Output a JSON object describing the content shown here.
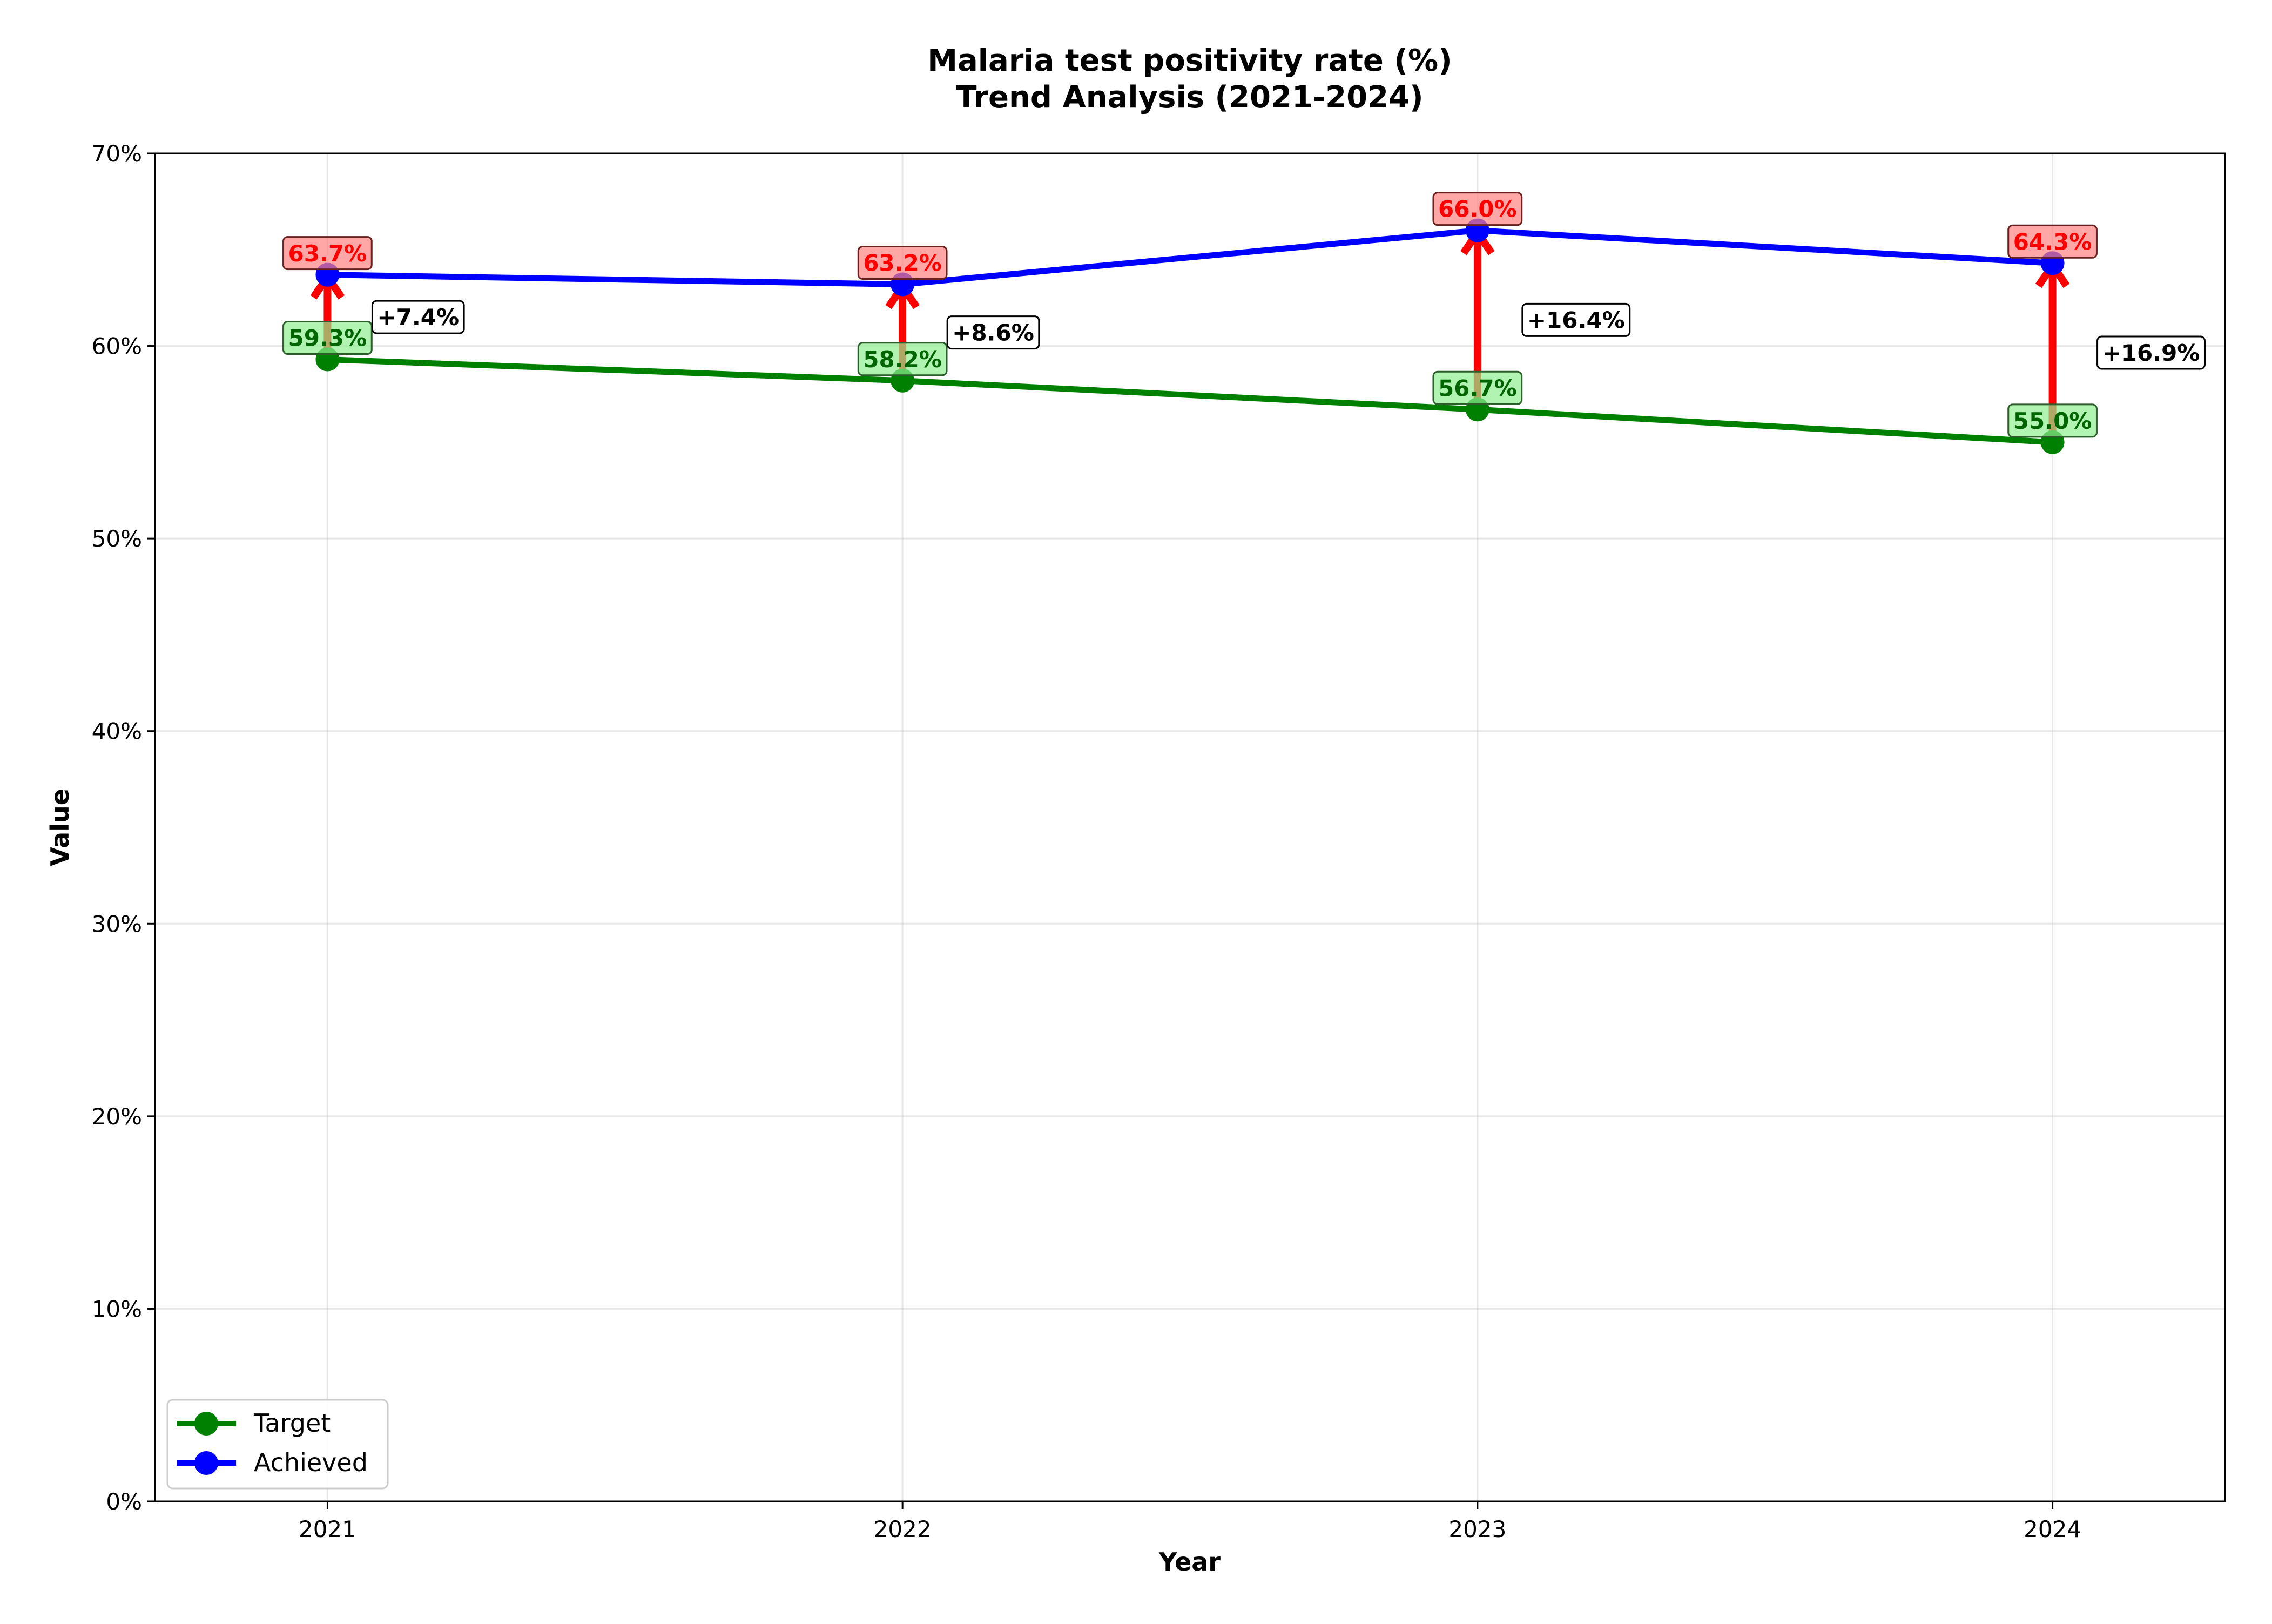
{
  "chart_data": {
    "type": "line",
    "title": "Malaria test positivity rate (%)",
    "subtitle": "Trend Analysis (2021-2024)",
    "xlabel": "Year",
    "ylabel": "Value",
    "categories": [
      "2021",
      "2022",
      "2023",
      "2024"
    ],
    "ylim": [
      0,
      70
    ],
    "y_ticks": [
      0,
      10,
      20,
      30,
      40,
      50,
      60,
      70
    ],
    "y_tick_labels": [
      "0%",
      "10%",
      "20%",
      "30%",
      "40%",
      "50%",
      "60%",
      "70%"
    ],
    "grid": true,
    "legend_position": "bottom-left",
    "series": [
      {
        "name": "Target",
        "color": "#008000",
        "label_bg": "#90ee90",
        "values": [
          59.3,
          58.2,
          56.7,
          55.0
        ],
        "labels": [
          "59.3%",
          "58.2%",
          "56.7%",
          "55.0%"
        ]
      },
      {
        "name": "Achieved",
        "color": "#0000ff",
        "label_bg": "#ff8080",
        "values": [
          63.7,
          63.2,
          66.0,
          64.3
        ],
        "labels": [
          "63.7%",
          "63.2%",
          "66.0%",
          "64.3%"
        ]
      }
    ],
    "change_labels": [
      "+7.4%",
      "+8.6%",
      "+16.4%",
      "+16.9%"
    ],
    "arrow_color": "#ff0000"
  }
}
